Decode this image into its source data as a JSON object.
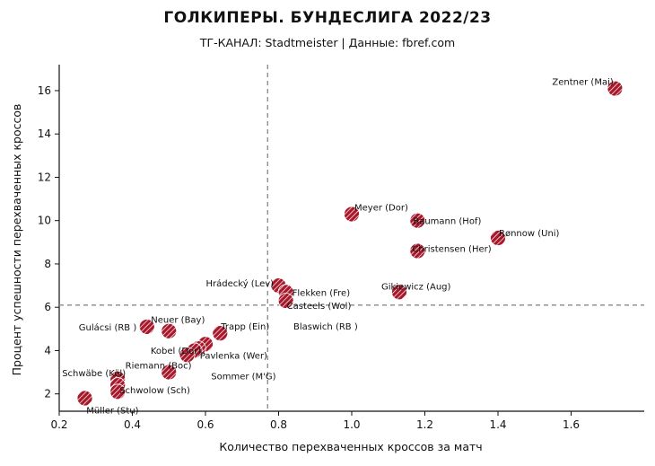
{
  "header": {
    "title": "ГОЛКИПЕРЫ. БУНДЕСЛИГА 2022/23",
    "subtitle": "ТГ-КАНАЛ: Stadtmeister | Данные: fbref.com"
  },
  "colors": {
    "point": "#a8182b",
    "hatch": "#ffffff",
    "refline": "#888888"
  },
  "chart_data": {
    "type": "scatter",
    "title": "ГОЛКИПЕРЫ. БУНДЕСЛИГА 2022/23",
    "subtitle": "ТГ-КАНАЛ: Stadtmeister | Данные: fbref.com",
    "xlabel": "Количество перехваченных кроссов за матч",
    "ylabel": "Процент успешности перехваченных кроссов",
    "xlim": [
      0.2,
      1.8
    ],
    "ylim": [
      1.2,
      17.2
    ],
    "xticks": [
      0.2,
      0.4,
      0.6,
      0.8,
      1.0,
      1.2,
      1.4,
      1.6
    ],
    "yticks": [
      2,
      4,
      6,
      8,
      10,
      12,
      14,
      16
    ],
    "xtick_labels": [
      "0.2",
      "0.4",
      "0.6",
      "0.8",
      "1.0",
      "1.2",
      "1.4",
      "1.6"
    ],
    "ytick_labels": [
      "2",
      "4",
      "6",
      "8",
      "10",
      "12",
      "14",
      "16"
    ],
    "ref_lines": {
      "x": 0.77,
      "y": 6.1
    },
    "grid": false,
    "points": [
      {
        "label": "Zentner (Mai)",
        "x": 1.72,
        "y": 16.1
      },
      {
        "label": "Meyer (Dor)",
        "x": 1.0,
        "y": 10.3
      },
      {
        "label": "Baumann (Hof)",
        "x": 1.18,
        "y": 10.0
      },
      {
        "label": "Rønnow (Uni)",
        "x": 1.4,
        "y": 9.2
      },
      {
        "label": "Christensen (Her)",
        "x": 1.18,
        "y": 8.6
      },
      {
        "label": "Gikiewicz (Aug)",
        "x": 1.13,
        "y": 6.7
      },
      {
        "label": "Hrádecký (Lev)",
        "x": 0.8,
        "y": 7.0
      },
      {
        "label": "Flekken (Fre)",
        "x": 0.82,
        "y": 6.7
      },
      {
        "label": "Casteels (Wol)",
        "x": 0.82,
        "y": 6.3
      },
      {
        "label": "Blaswich (RB )",
        "x": 0.6,
        "y": 4.3
      },
      {
        "label": "Gulácsi (RB )",
        "x": 0.44,
        "y": 5.1
      },
      {
        "label": "Neuer (Bay)",
        "x": 0.5,
        "y": 4.9
      },
      {
        "label": "Trapp (Ein)",
        "x": 0.64,
        "y": 4.8
      },
      {
        "label": "Kobel (Dor)",
        "x": 0.58,
        "y": 4.1
      },
      {
        "label": "Pavlenka (Wer)",
        "x": 0.57,
        "y": 4.0
      },
      {
        "label": "Riemann (Boc)",
        "x": 0.55,
        "y": 3.8
      },
      {
        "label": "Sommer (M'G)",
        "x": 0.5,
        "y": 3.0
      },
      {
        "label": "Schwäbe (Köl)",
        "x": 0.36,
        "y": 2.7
      },
      {
        "label": "Schwolow (Sch)",
        "x": 0.36,
        "y": 2.4
      },
      {
        "label": "Müller (Stu)",
        "x": 0.36,
        "y": 2.1
      },
      {
        "label": "",
        "x": 0.27,
        "y": 1.8
      }
    ]
  }
}
